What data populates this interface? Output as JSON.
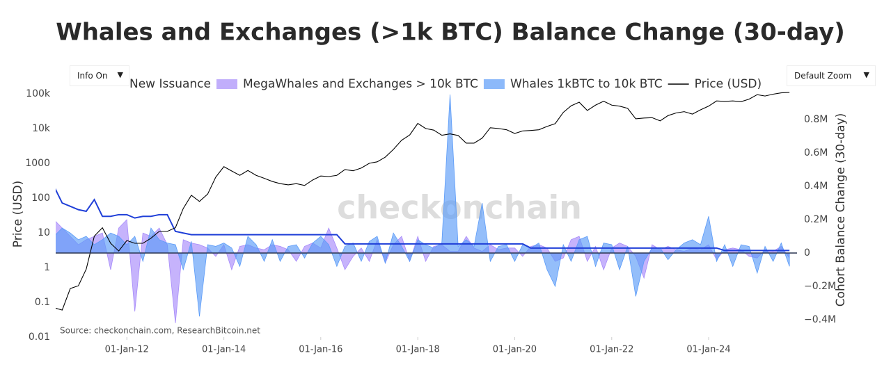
{
  "chart_data": {
    "type": "line",
    "title": "Whales and Exchanges (>1k BTC) Balance Change (30-day)",
    "source": "Source: checkonchain.com, ResearchBitcoin.net",
    "watermark": "checkonchain",
    "y_label": "Price (USD)",
    "y2_label": "Cohort Balance Change (30-day)",
    "controls": {
      "info": "Info On",
      "zoom": "Default Zoom"
    },
    "log_y": true,
    "legend": "top",
    "xlim": [
      "2010-07-14",
      "2025-10-28"
    ],
    "xticks": [
      {
        "value": "2012-01-01",
        "label": "01-Jan-12"
      },
      {
        "value": "2014-01-01",
        "label": "01-Jan-14"
      },
      {
        "value": "2016-01-01",
        "label": "01-Jan-16"
      },
      {
        "value": "2018-01-01",
        "label": "01-Jan-18"
      },
      {
        "value": "2020-01-01",
        "label": "01-Jan-20"
      },
      {
        "value": "2022-01-01",
        "label": "01-Jan-22"
      },
      {
        "value": "2024-01-01",
        "label": "01-Jan-24"
      }
    ],
    "ylim": [
      0.01,
      125000
    ],
    "yticks": [
      0.01,
      0.1,
      1,
      10,
      100,
      1000,
      {
        "value": 10000,
        "label": "10k"
      },
      {
        "value": 100000,
        "label": "100k"
      }
    ],
    "y2lim": [
      -504000,
      975000
    ],
    "y2ticks": [
      {
        "value": -400000,
        "label": "−0.4M"
      },
      {
        "value": -200000,
        "label": "−0.2M"
      },
      0,
      {
        "value": 200000,
        "label": "0.2M"
      },
      {
        "value": 400000,
        "label": "0.4M"
      },
      {
        "value": 600000,
        "label": "0.6M"
      },
      {
        "value": 800000,
        "label": "0.8M"
      }
    ],
    "x": [
      "2010-07-01",
      "2010-09-01",
      "2010-11-01",
      "2011-01-01",
      "2011-03-01",
      "2011-05-01",
      "2011-07-01",
      "2011-09-01",
      "2011-11-01",
      "2012-01-01",
      "2012-03-01",
      "2012-05-01",
      "2012-07-01",
      "2012-09-01",
      "2012-11-01",
      "2013-01-01",
      "2013-03-01",
      "2013-05-01",
      "2013-07-01",
      "2013-09-01",
      "2013-11-01",
      "2014-01-01",
      "2014-03-01",
      "2014-05-01",
      "2014-07-01",
      "2014-09-01",
      "2014-11-01",
      "2015-01-01",
      "2015-03-01",
      "2015-05-01",
      "2015-07-01",
      "2015-09-01",
      "2015-11-01",
      "2016-01-01",
      "2016-03-01",
      "2016-05-01",
      "2016-07-01",
      "2016-09-01",
      "2016-11-01",
      "2017-01-01",
      "2017-03-01",
      "2017-05-01",
      "2017-07-01",
      "2017-09-01",
      "2017-11-01",
      "2018-01-01",
      "2018-03-01",
      "2018-05-01",
      "2018-07-01",
      "2018-09-01",
      "2018-11-01",
      "2019-01-01",
      "2019-03-01",
      "2019-05-01",
      "2019-07-01",
      "2019-09-01",
      "2019-11-01",
      "2020-01-01",
      "2020-03-01",
      "2020-05-01",
      "2020-07-01",
      "2020-09-01",
      "2020-11-01",
      "2021-01-01",
      "2021-03-01",
      "2021-05-01",
      "2021-07-01",
      "2021-09-01",
      "2021-11-01",
      "2022-01-01",
      "2022-03-01",
      "2022-05-01",
      "2022-07-01",
      "2022-09-01",
      "2022-11-01",
      "2023-01-01",
      "2023-03-01",
      "2023-05-01",
      "2023-07-01",
      "2023-09-01",
      "2023-11-01",
      "2024-01-01",
      "2024-03-01",
      "2024-05-01",
      "2024-07-01",
      "2024-09-01",
      "2024-11-01",
      "2025-01-01",
      "2025-03-01",
      "2025-05-01",
      "2025-07-01",
      "2025-09-01"
    ],
    "series": [
      {
        "name": "New Issuance",
        "kind": "line",
        "axis": "y2",
        "color": "#1f3fd8",
        "values": [
          400000,
          300000,
          280000,
          260000,
          250000,
          320000,
          220000,
          220000,
          230000,
          230000,
          210000,
          220000,
          220000,
          230000,
          230000,
          130000,
          120000,
          110000,
          110000,
          110000,
          110000,
          110000,
          110000,
          110000,
          110000,
          110000,
          110000,
          110000,
          110000,
          110000,
          110000,
          110000,
          110000,
          110000,
          110000,
          110000,
          55000,
          55000,
          55000,
          55000,
          55000,
          55000,
          55000,
          55000,
          55000,
          55000,
          55000,
          55000,
          55000,
          55000,
          55000,
          55000,
          55000,
          55000,
          55000,
          55000,
          55000,
          55000,
          55000,
          30000,
          30000,
          30000,
          30000,
          30000,
          30000,
          30000,
          30000,
          30000,
          30000,
          30000,
          30000,
          30000,
          30000,
          30000,
          30000,
          30000,
          30000,
          30000,
          30000,
          30000,
          30000,
          30000,
          30000,
          15000,
          15000,
          15000,
          15000,
          15000,
          15000,
          15000,
          15000,
          15000
        ]
      },
      {
        "name": "MegaWhales and Exchanges > 10k BTC",
        "kind": "area",
        "axis": "y2",
        "color": "#a78bfa",
        "values": [
          200000,
          150000,
          100000,
          50000,
          80000,
          100000,
          120000,
          -100000,
          150000,
          200000,
          -350000,
          120000,
          100000,
          150000,
          50000,
          -420000,
          80000,
          60000,
          50000,
          30000,
          -20000,
          50000,
          -100000,
          40000,
          50000,
          30000,
          20000,
          50000,
          40000,
          20000,
          -50000,
          40000,
          60000,
          30000,
          150000,
          30000,
          -100000,
          -20000,
          30000,
          -50000,
          80000,
          -60000,
          50000,
          100000,
          -50000,
          100000,
          -50000,
          40000,
          50000,
          10000,
          10000,
          100000,
          30000,
          10000,
          50000,
          20000,
          30000,
          30000,
          -20000,
          40000,
          50000,
          30000,
          -50000,
          -30000,
          80000,
          100000,
          -50000,
          40000,
          -100000,
          30000,
          60000,
          40000,
          -20000,
          -150000,
          50000,
          20000,
          40000,
          20000,
          10000,
          30000,
          20000,
          50000,
          -40000,
          20000,
          30000,
          20000,
          -20000,
          -30000,
          20000,
          10000,
          40000,
          -30000
        ]
      },
      {
        "name": "Whales 1kBTC to 10k BTC",
        "kind": "area",
        "axis": "y2",
        "color": "#5b9bf8",
        "values": [
          100000,
          150000,
          120000,
          80000,
          100000,
          50000,
          80000,
          120000,
          100000,
          50000,
          100000,
          -50000,
          150000,
          80000,
          60000,
          50000,
          -100000,
          70000,
          -380000,
          50000,
          40000,
          60000,
          30000,
          -80000,
          100000,
          50000,
          -50000,
          80000,
          -50000,
          40000,
          50000,
          -30000,
          60000,
          100000,
          50000,
          -80000,
          40000,
          60000,
          -50000,
          70000,
          100000,
          -60000,
          120000,
          40000,
          -50000,
          80000,
          50000,
          30000,
          60000,
          950000,
          40000,
          80000,
          40000,
          300000,
          -50000,
          40000,
          50000,
          -50000,
          50000,
          30000,
          60000,
          -100000,
          -200000,
          50000,
          -50000,
          80000,
          100000,
          -80000,
          60000,
          50000,
          -100000,
          40000,
          -260000,
          -50000,
          30000,
          30000,
          -40000,
          20000,
          60000,
          80000,
          50000,
          220000,
          -50000,
          50000,
          -80000,
          50000,
          40000,
          -120000,
          40000,
          -50000,
          60000,
          -80000
        ]
      },
      {
        "name": "Price (USD)",
        "kind": "line",
        "axis": "y",
        "color": "#000000",
        "values": [
          0.07,
          0.06,
          0.25,
          0.3,
          0.9,
          8,
          14,
          5,
          3,
          6,
          5,
          5,
          7,
          11,
          11,
          14,
          50,
          120,
          80,
          130,
          400,
          800,
          600,
          450,
          620,
          450,
          370,
          300,
          260,
          240,
          260,
          230,
          330,
          430,
          415,
          450,
          660,
          610,
          730,
          1000,
          1100,
          1500,
          2500,
          4600,
          6500,
          14000,
          10000,
          9000,
          6400,
          7000,
          6300,
          3800,
          3800,
          5300,
          10500,
          10000,
          9200,
          7200,
          8500,
          8800,
          9200,
          11500,
          13800,
          29000,
          45000,
          57000,
          33000,
          47000,
          61000,
          47000,
          44000,
          38000,
          19000,
          20000,
          20500,
          16600,
          23500,
          28000,
          30500,
          26000,
          34500,
          44000,
          62000,
          60000,
          62000,
          59000,
          70000,
          94000,
          86000,
          97000,
          106000,
          109000
        ]
      }
    ]
  }
}
